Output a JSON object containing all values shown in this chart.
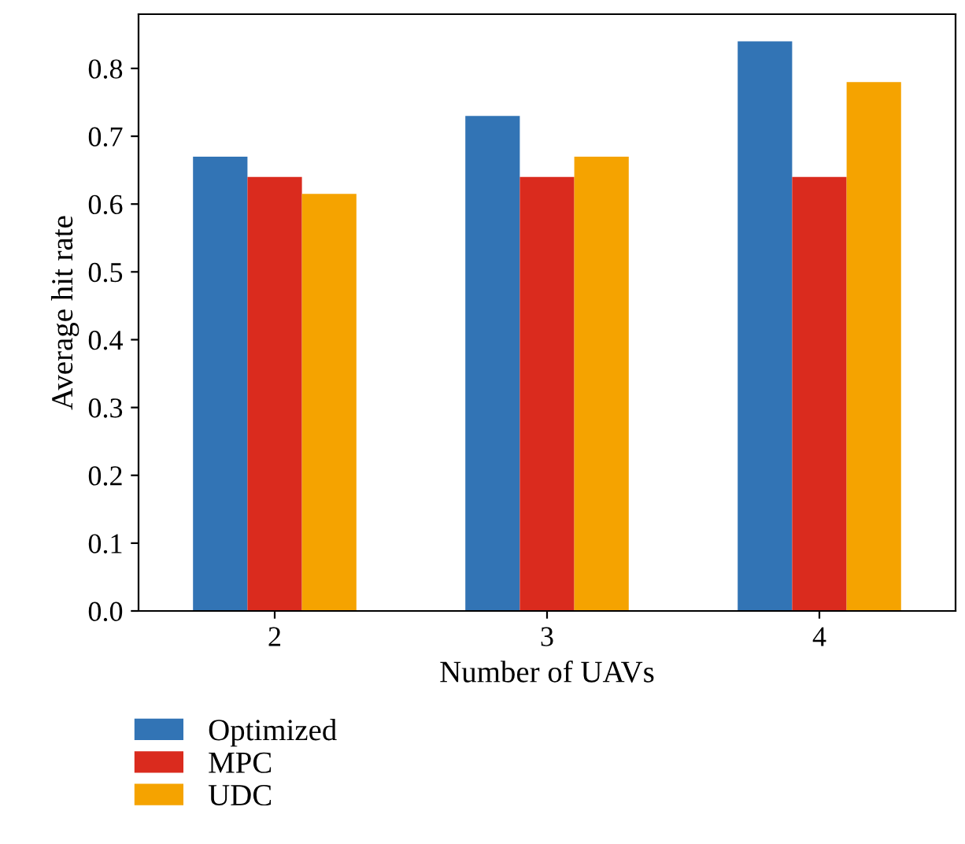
{
  "chart_data": {
    "type": "bar",
    "xlabel": "Number of UAVs",
    "ylabel": "Average hit rate",
    "categories": [
      "2",
      "3",
      "4"
    ],
    "series": [
      {
        "name": "Optimized",
        "color": "#3274b5",
        "values": [
          0.67,
          0.73,
          0.84
        ]
      },
      {
        "name": "MPC",
        "color": "#da2b1e",
        "values": [
          0.64,
          0.64,
          0.64
        ]
      },
      {
        "name": "UDC",
        "color": "#f5a300",
        "values": [
          0.615,
          0.67,
          0.78
        ]
      }
    ],
    "ylim": [
      0,
      0.88
    ],
    "yticks": [
      {
        "value": 0,
        "label": "0.0"
      },
      0.1,
      0.2,
      0.3,
      0.4,
      0.5,
      0.6,
      0.7,
      0.8
    ],
    "legend": "bottom",
    "grid": false
  }
}
